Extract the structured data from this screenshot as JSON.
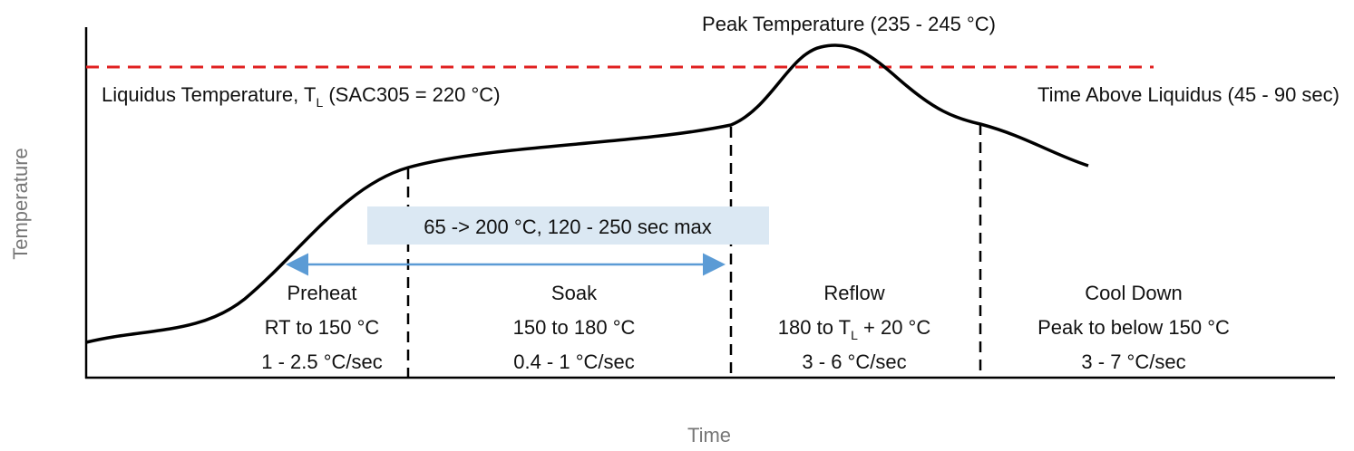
{
  "axes": {
    "x_label": "Time",
    "y_label": "Temperature"
  },
  "peak_label": "Peak Temperature (235 - 245 °C)",
  "liquidus_label": {
    "parts": [
      "Liquidus Temperature, T",
      "L",
      " (SAC305 = 220 °C)"
    ]
  },
  "time_above_label": "Time Above Liquidus (45 - 90 sec)",
  "soak_box_label": "65 -> 200 °C, 120 - 250 sec max",
  "zones": [
    {
      "name": "Preheat",
      "temp": "RT to 150 °C",
      "rate": "1 - 2.5 °C/sec"
    },
    {
      "name": "Soak",
      "temp": "150 to 180 °C",
      "rate": "0.4 - 1 °C/sec"
    },
    {
      "name": "Reflow",
      "temp_parts": [
        "180 to T",
        "L",
        " + 20 °C"
      ],
      "rate": "3 - 6 °C/sec"
    },
    {
      "name": "Cool Down",
      "temp": "Peak to below 150 °C",
      "rate": "3 - 7 °C/sec"
    }
  ]
}
